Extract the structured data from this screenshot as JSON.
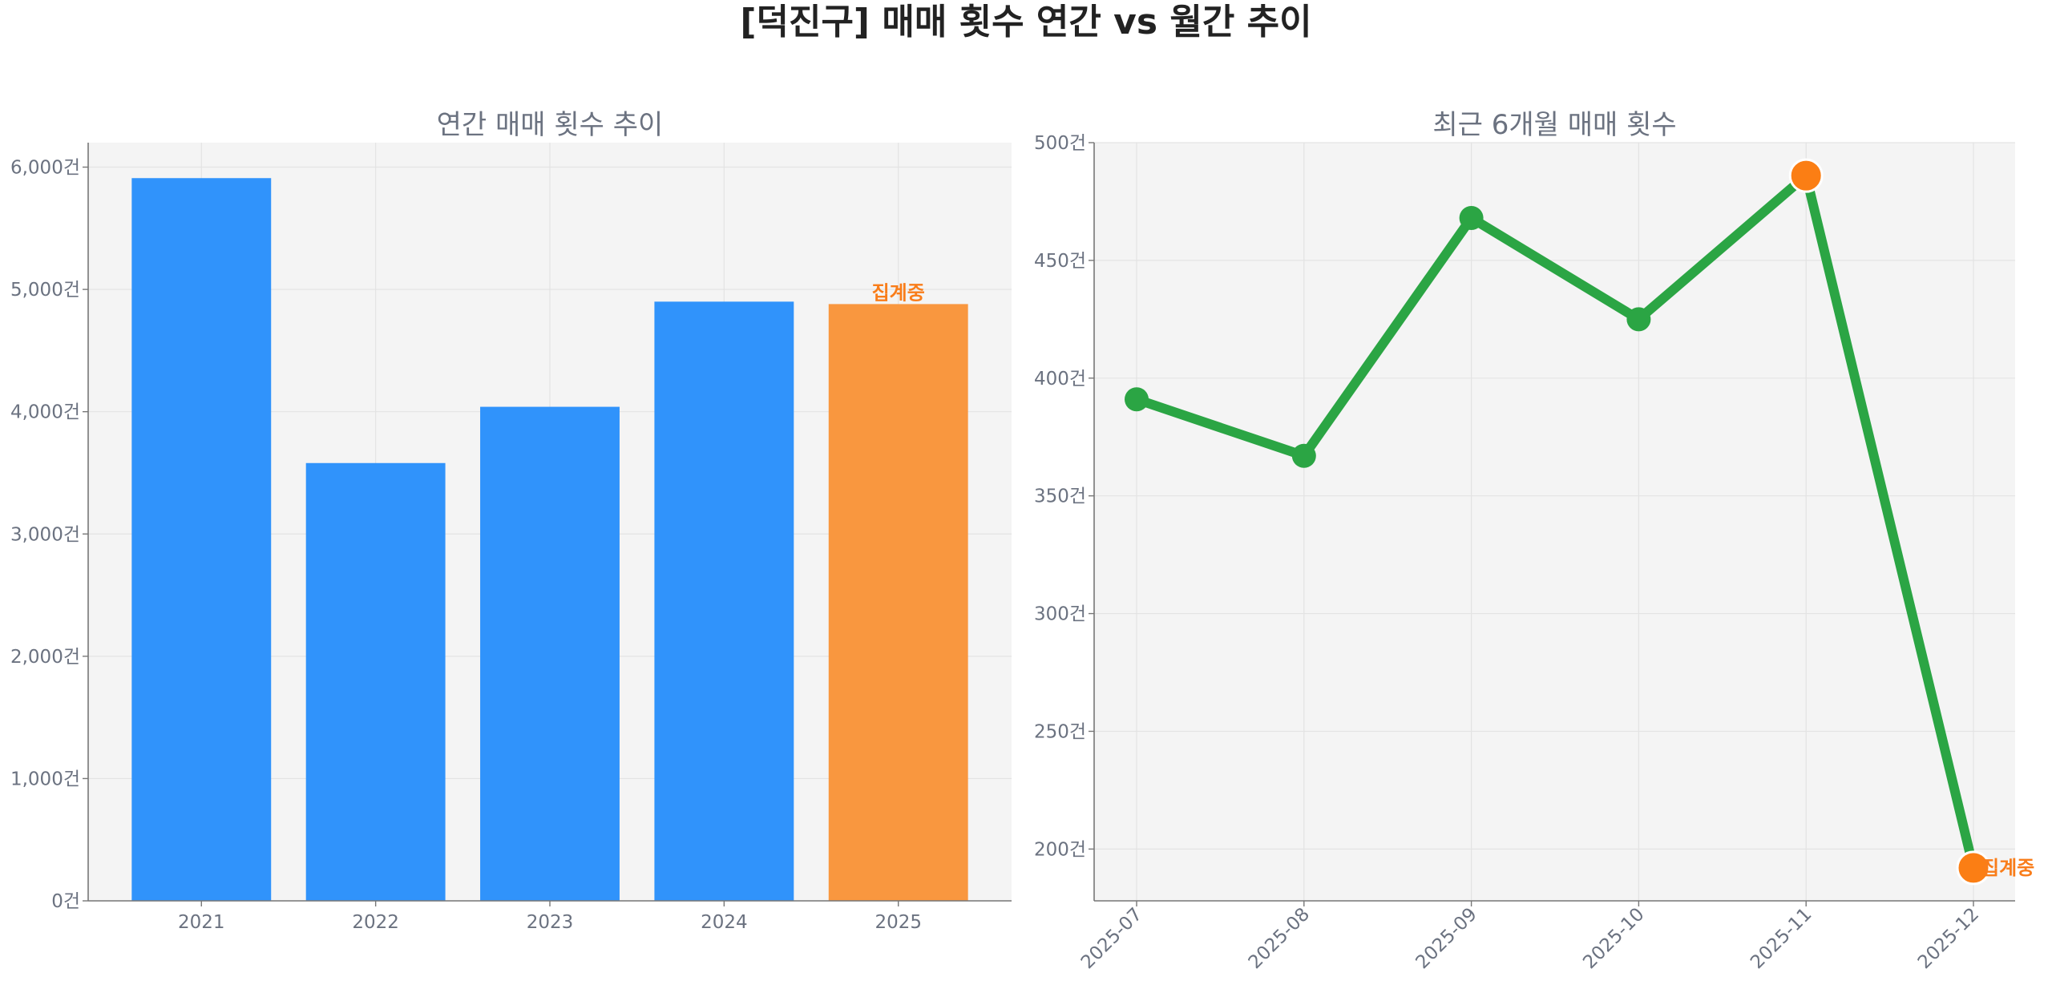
{
  "suptitle": "[덕진구] 매매 횟수 연간 vs 월간 추이",
  "colors": {
    "bar": "#3093fb",
    "highlight": "#f9973f",
    "line": "#2ba544",
    "marker_highlight": "#fb7e14",
    "annotation": "#f97d1a",
    "plot_bg": "#f4f4f4"
  },
  "chart_data": [
    {
      "type": "bar",
      "title": "연간 매매 횟수 추이",
      "categories": [
        "2021",
        "2022",
        "2023",
        "2024",
        "2025"
      ],
      "values": [
        5910,
        3580,
        4040,
        4900,
        4880
      ],
      "highlight_index": 4,
      "annotation": "집계중",
      "ylim": [
        0,
        6200
      ],
      "yticks": [
        0,
        1000,
        2000,
        3000,
        4000,
        5000,
        6000
      ],
      "ytick_labels": [
        "0건",
        "1,000건",
        "2,000건",
        "3,000건",
        "4,000건",
        "5,000건",
        "6,000건"
      ],
      "grid": true
    },
    {
      "type": "line",
      "title": "최근 6개월 매매 횟수",
      "x": [
        "2025-07",
        "2025-08",
        "2025-09",
        "2025-10",
        "2025-11",
        "2025-12"
      ],
      "values": [
        391,
        367,
        468,
        425,
        486,
        192
      ],
      "highlight_indices": [
        4,
        5
      ],
      "annotation": "집계중",
      "annotation_index": 5,
      "ylim": [
        178,
        500
      ],
      "yticks": [
        200,
        250,
        300,
        350,
        400,
        450,
        500
      ],
      "ytick_labels": [
        "200건",
        "250건",
        "300건",
        "350건",
        "400건",
        "450건",
        "500건"
      ],
      "grid": true
    }
  ]
}
